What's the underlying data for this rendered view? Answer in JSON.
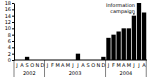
{
  "chart_data": {
    "type": "bar",
    "categories": [
      "J",
      "A",
      "S",
      "O",
      "N",
      "D",
      "J",
      "F",
      "M",
      "A",
      "M",
      "J",
      "J",
      "A",
      "S",
      "O",
      "N",
      "D",
      "J",
      "F",
      "M",
      "A",
      "M",
      "J",
      "J",
      "A"
    ],
    "values": [
      0,
      0,
      1,
      0,
      0,
      0,
      0,
      0,
      0,
      0,
      0,
      0,
      2,
      0,
      0,
      0,
      0,
      1,
      7,
      8,
      9,
      10,
      10,
      14,
      18,
      15
    ],
    "x_groups": [
      {
        "label": "2002",
        "count": 6
      },
      {
        "label": "2003",
        "count": 12
      },
      {
        "label": "2004",
        "count": 8
      }
    ],
    "annotations": [
      {
        "text": "Information campaign",
        "x": 23
      }
    ],
    "color": "#000000",
    "ylim": [
      0,
      18
    ],
    "yticks": [
      0,
      2,
      4,
      6,
      8,
      10,
      12,
      14,
      16,
      18
    ],
    "grid": false
  }
}
